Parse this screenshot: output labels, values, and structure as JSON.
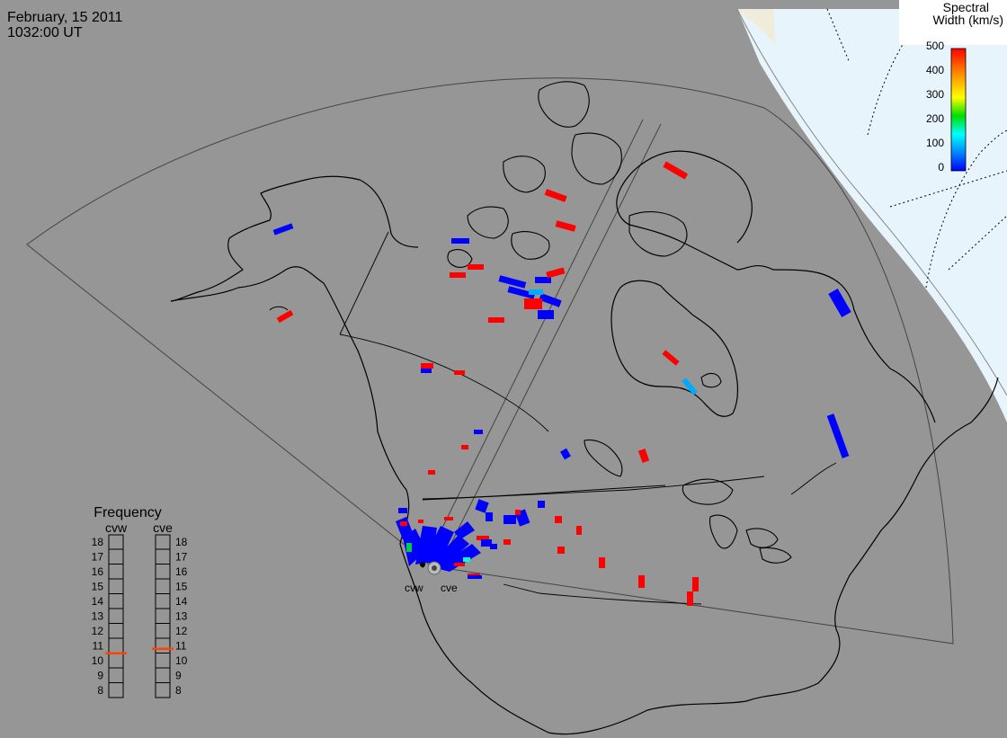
{
  "header": {
    "date": "February, 15 2011",
    "time": "1032:00 UT"
  },
  "colorbar": {
    "title_line1": "Spectral",
    "title_line2": "Width (km/s)",
    "ticks": [
      "500",
      "400",
      "300",
      "200",
      "100",
      "0"
    ],
    "stops": [
      "#ff0000",
      "#ff8800",
      "#ffff00",
      "#00dd00",
      "#00ffff",
      "#0088ff",
      "#0000ff"
    ]
  },
  "radars": {
    "west_label": "cvw",
    "east_label": "cve"
  },
  "frequency": {
    "title": "Frequency",
    "left_label": "cvw",
    "right_label": "cve",
    "ticks": [
      "18",
      "17",
      "16",
      "15",
      "14",
      "13",
      "12",
      "11",
      "10",
      "9",
      "8"
    ],
    "range_mhz": [
      8,
      18
    ],
    "cvw_value_mhz": 10.5,
    "cve_value_mhz": 10.8,
    "marker_color": "#ff4400"
  },
  "colors": {
    "map_background": "#969696",
    "ocean_day": "#e8f4fb",
    "sea_ice_tint": "#f0ecdc",
    "coastline": "#000000",
    "echo_blue": "#0000ff",
    "echo_red": "#ff0000",
    "echo_cyan": "#00aaff"
  }
}
